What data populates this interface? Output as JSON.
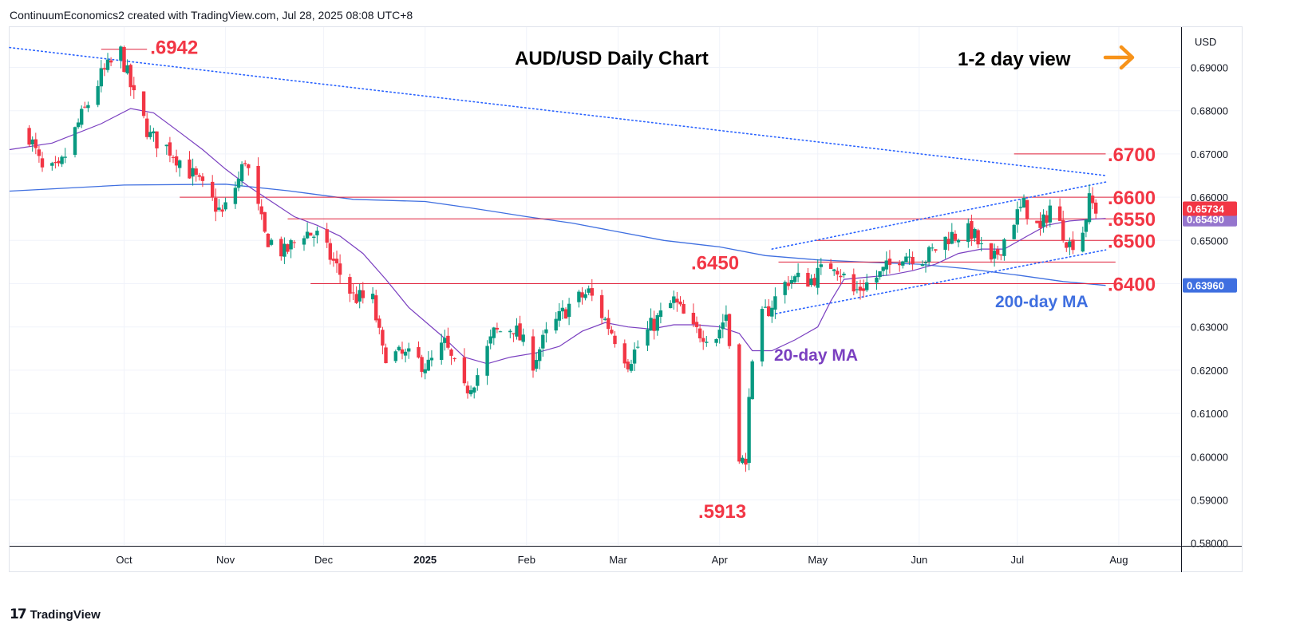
{
  "header": {
    "credit": "ContinuumEconomics2 created with TradingView.com, Jul 28, 2025 08:08 UTC+8"
  },
  "footer": {
    "brand": "TradingView"
  },
  "colors": {
    "up": "#089981",
    "down": "#f23645",
    "level": "#e0203a",
    "label_red": "#f23645",
    "ma200": "#3f6fe0",
    "ma20": "#7a3fc0",
    "trend": "#2962ff",
    "arrow": "#f7931a",
    "grid": "#f0f3fa",
    "axis": "#131722"
  },
  "chart_data": {
    "type": "candlestick",
    "title": "AUD/USD Daily Chart",
    "view_label": "1-2 day view",
    "view_icon": "right-arrow-icon",
    "currency": "USD",
    "x_ticks": [
      "Oct",
      "Nov",
      "Dec",
      "2025",
      "Feb",
      "Mar",
      "Apr",
      "May",
      "Jun",
      "Jul",
      "Aug"
    ],
    "y_ticks": [
      "0.69000",
      "0.68000",
      "0.67000",
      "0.66000",
      "0.65000",
      "0.64000",
      "0.63000",
      "0.62000",
      "0.61000",
      "0.60000",
      "0.59000",
      "0.58000"
    ],
    "ylim": [
      0.5799,
      0.6989
    ],
    "levels": [
      {
        "label": ".6942",
        "value": 0.6942,
        "from": "2024-09-24",
        "to": "2024-10-08"
      },
      {
        "label": ".6700",
        "value": 0.67,
        "from": "2025-06-30",
        "to": "2025-07-28"
      },
      {
        "label": ".6600",
        "value": 0.66,
        "from": "2024-10-18",
        "to": "2025-07-31"
      },
      {
        "label": ".6550",
        "value": 0.655,
        "from": "2024-11-20",
        "to": "2025-07-31"
      },
      {
        "label": ".6500",
        "value": 0.65,
        "from": "2025-04-30",
        "to": "2025-07-31"
      },
      {
        "label": ".6450",
        "value": 0.645,
        "from": "2025-04-19",
        "to": "2025-07-31"
      },
      {
        "label": ".6400",
        "value": 0.64,
        "from": "2024-11-27",
        "to": "2025-07-31"
      },
      {
        "label": ".5913",
        "value": 0.5913,
        "from": "2025-04-09",
        "to": "2025-04-09"
      }
    ],
    "annotations": [
      {
        "text": "20-day MA",
        "series": "ma20"
      },
      {
        "text": "200-day MA",
        "series": "ma200"
      }
    ],
    "last_price": "0.65734",
    "ma20_value": "0.65490",
    "ma200_value": "0.63960",
    "trendlines": [
      {
        "name": "long-term-resistance",
        "from": [
          "2024-08-27",
          0.6946
        ],
        "to": [
          "2025-07-28",
          0.665
        ]
      },
      {
        "name": "channel-upper",
        "from": [
          "2025-04-17",
          0.648
        ],
        "to": [
          "2025-07-28",
          0.6635
        ]
      },
      {
        "name": "channel-lower",
        "from": [
          "2025-04-17",
          0.6329
        ],
        "to": [
          "2025-07-28",
          0.6478
        ]
      }
    ],
    "anchors": [
      [
        "2024-09-01",
        0.6765
      ],
      [
        "2024-09-06",
        0.666
      ],
      [
        "2024-09-11",
        0.666
      ],
      [
        "2024-09-17",
        0.677
      ],
      [
        "2024-09-24",
        0.688
      ],
      [
        "2024-09-30",
        0.6935
      ],
      [
        "2024-10-04",
        0.683
      ],
      [
        "2024-10-09",
        0.674
      ],
      [
        "2024-10-15",
        0.671
      ],
      [
        "2024-10-21",
        0.666
      ],
      [
        "2024-10-25",
        0.662
      ],
      [
        "2024-10-31",
        0.656
      ],
      [
        "2024-11-05",
        0.664
      ],
      [
        "2024-11-07",
        0.669
      ],
      [
        "2024-11-13",
        0.651
      ],
      [
        "2024-11-19",
        0.647
      ],
      [
        "2024-11-25",
        0.652
      ],
      [
        "2024-11-29",
        0.651
      ],
      [
        "2024-12-04",
        0.645
      ],
      [
        "2024-12-10",
        0.637
      ],
      [
        "2024-12-16",
        0.636
      ],
      [
        "2024-12-19",
        0.624
      ],
      [
        "2024-12-27",
        0.623
      ],
      [
        "2025-01-02",
        0.621
      ],
      [
        "2025-01-07",
        0.626
      ],
      [
        "2025-01-13",
        0.615
      ],
      [
        "2025-01-17",
        0.619
      ],
      [
        "2025-01-22",
        0.6285
      ],
      [
        "2025-01-28",
        0.63
      ],
      [
        "2025-02-03",
        0.622
      ],
      [
        "2025-02-07",
        0.628
      ],
      [
        "2025-02-14",
        0.635
      ],
      [
        "2025-02-20",
        0.638
      ],
      [
        "2025-02-27",
        0.629
      ],
      [
        "2025-03-04",
        0.622
      ],
      [
        "2025-03-11",
        0.63
      ],
      [
        "2025-03-18",
        0.636
      ],
      [
        "2025-03-24",
        0.629
      ],
      [
        "2025-03-31",
        0.628
      ],
      [
        "2025-04-03",
        0.633
      ],
      [
        "2025-04-04",
        0.626
      ],
      [
        "2025-04-07",
        0.601
      ],
      [
        "2025-04-09",
        0.597
      ],
      [
        "2025-04-10",
        0.616
      ],
      [
        "2025-04-14",
        0.632
      ],
      [
        "2025-04-22",
        0.641
      ],
      [
        "2025-04-29",
        0.641
      ],
      [
        "2025-05-06",
        0.645
      ],
      [
        "2025-05-12",
        0.638
      ],
      [
        "2025-05-20",
        0.642
      ],
      [
        "2025-05-27",
        0.647
      ],
      [
        "2025-06-03",
        0.646
      ],
      [
        "2025-06-10",
        0.651
      ],
      [
        "2025-06-17",
        0.652
      ],
      [
        "2025-06-23",
        0.644
      ],
      [
        "2025-06-30",
        0.655
      ],
      [
        "2025-07-03",
        0.658
      ],
      [
        "2025-07-08",
        0.652
      ],
      [
        "2025-07-11",
        0.658
      ],
      [
        "2025-07-17",
        0.649
      ],
      [
        "2025-07-21",
        0.6525
      ],
      [
        "2025-07-23",
        0.659
      ],
      [
        "2025-07-25",
        0.6573
      ]
    ],
    "ma20": [
      [
        "2024-08-27",
        0.671
      ],
      [
        "2024-09-09",
        0.6725
      ],
      [
        "2024-09-24",
        0.677
      ],
      [
        "2024-10-03",
        0.6805
      ],
      [
        "2024-10-10",
        0.6795
      ],
      [
        "2024-10-18",
        0.675
      ],
      [
        "2024-10-25",
        0.671
      ],
      [
        "2024-11-01",
        0.6665
      ],
      [
        "2024-11-08",
        0.6625
      ],
      [
        "2024-11-15",
        0.659
      ],
      [
        "2024-11-22",
        0.6555
      ],
      [
        "2024-11-29",
        0.6535
      ],
      [
        "2024-12-06",
        0.651
      ],
      [
        "2024-12-13",
        0.647
      ],
      [
        "2024-12-20",
        0.641
      ],
      [
        "2024-12-27",
        0.6345
      ],
      [
        "2025-01-06",
        0.628
      ],
      [
        "2025-01-13",
        0.623
      ],
      [
        "2025-01-20",
        0.6215
      ],
      [
        "2025-01-27",
        0.623
      ],
      [
        "2025-02-04",
        0.624
      ],
      [
        "2025-02-11",
        0.6255
      ],
      [
        "2025-02-18",
        0.629
      ],
      [
        "2025-02-25",
        0.631
      ],
      [
        "2025-03-04",
        0.63
      ],
      [
        "2025-03-11",
        0.6295
      ],
      [
        "2025-03-18",
        0.6305
      ],
      [
        "2025-03-25",
        0.6305
      ],
      [
        "2025-04-01",
        0.63
      ],
      [
        "2025-04-07",
        0.6285
      ],
      [
        "2025-04-11",
        0.6245
      ],
      [
        "2025-04-17",
        0.6245
      ],
      [
        "2025-04-24",
        0.627
      ],
      [
        "2025-05-01",
        0.63
      ],
      [
        "2025-05-05",
        0.636
      ],
      [
        "2025-05-09",
        0.641
      ],
      [
        "2025-05-16",
        0.6415
      ],
      [
        "2025-05-23",
        0.642
      ],
      [
        "2025-05-30",
        0.643
      ],
      [
        "2025-06-06",
        0.6445
      ],
      [
        "2025-06-13",
        0.647
      ],
      [
        "2025-06-20",
        0.648
      ],
      [
        "2025-06-27",
        0.648
      ],
      [
        "2025-07-04",
        0.651
      ],
      [
        "2025-07-10",
        0.6535
      ],
      [
        "2025-07-17",
        0.6545
      ],
      [
        "2025-07-24",
        0.6549
      ],
      [
        "2025-07-28",
        0.6551
      ]
    ],
    "ma200": [
      [
        "2024-08-27",
        0.6614
      ],
      [
        "2024-10-01",
        0.6628
      ],
      [
        "2024-11-01",
        0.663
      ],
      [
        "2024-11-20",
        0.6615
      ],
      [
        "2024-12-10",
        0.6595
      ],
      [
        "2025-01-01",
        0.659
      ],
      [
        "2025-01-15",
        0.6575
      ],
      [
        "2025-02-01",
        0.6555
      ],
      [
        "2025-02-15",
        0.654
      ],
      [
        "2025-03-01",
        0.652
      ],
      [
        "2025-03-15",
        0.65
      ],
      [
        "2025-04-01",
        0.6485
      ],
      [
        "2025-04-15",
        0.6465
      ],
      [
        "2025-05-01",
        0.6455
      ],
      [
        "2025-05-15",
        0.645
      ],
      [
        "2025-06-01",
        0.6445
      ],
      [
        "2025-06-15",
        0.6435
      ],
      [
        "2025-07-01",
        0.642
      ],
      [
        "2025-07-15",
        0.6405
      ],
      [
        "2025-07-28",
        0.6396
      ]
    ]
  }
}
